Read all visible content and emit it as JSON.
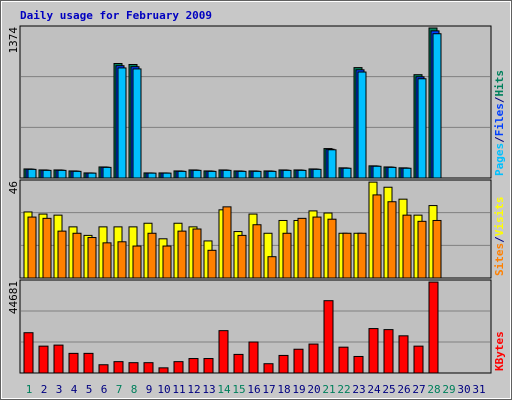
{
  "chart_data": [
    {
      "type": "bar",
      "title": "Daily usage for February 2009",
      "ylim": [
        0,
        1374
      ],
      "yticks": [
        1374
      ],
      "grid_divisions": 3,
      "legend_separator": "/",
      "series": [
        {
          "name": "Hits",
          "color": "#00805c",
          "values": [
            82,
            73,
            73,
            64,
            46,
            100,
            1035,
            1026,
            46,
            46,
            64,
            73,
            64,
            73,
            64,
            64,
            64,
            73,
            73,
            82,
            266,
            92,
            998,
            110,
            100,
            92,
            934,
            1356,
            null,
            null,
            null
          ]
        },
        {
          "name": "Files",
          "color": "#0040ff",
          "values": [
            80,
            71,
            71,
            62,
            45,
            98,
            1015,
            1006,
            45,
            45,
            62,
            71,
            62,
            71,
            62,
            62,
            62,
            71,
            71,
            80,
            260,
            90,
            978,
            108,
            98,
            90,
            915,
            1330,
            null,
            null,
            null
          ]
        },
        {
          "name": "Pages",
          "color": "#00c0ff",
          "values": [
            78,
            69,
            69,
            60,
            44,
            96,
            995,
            986,
            44,
            44,
            60,
            69,
            60,
            69,
            60,
            60,
            60,
            69,
            69,
            78,
            255,
            88,
            958,
            106,
            96,
            88,
            897,
            1304,
            null,
            null,
            null
          ]
        }
      ]
    },
    {
      "type": "bar",
      "ylim": [
        0,
        46
      ],
      "yticks": [
        46
      ],
      "grid_divisions": 3,
      "legend_separator": "/",
      "series": [
        {
          "name": "Visits",
          "color": "#ffff00",
          "values": [
            31,
            30,
            29.5,
            24,
            20,
            24,
            24,
            24,
            25.7,
            18.4,
            25.7,
            24,
            17.4,
            32,
            21.8,
            30,
            21,
            27,
            27,
            31.5,
            30.5,
            21,
            21,
            45,
            42.6,
            37,
            29.5,
            34,
            null,
            null,
            null
          ]
        },
        {
          "name": "Sites",
          "color": "#ff8000",
          "values": [
            28.6,
            28,
            22,
            21,
            19,
            16.5,
            17,
            15,
            21,
            15,
            22,
            23,
            13,
            33.4,
            20,
            25,
            10,
            21,
            28,
            28.6,
            27.6,
            21,
            21,
            39,
            35.8,
            29.5,
            26.6,
            27,
            null,
            null,
            null
          ]
        }
      ]
    },
    {
      "type": "bar",
      "ylim": [
        0,
        44681
      ],
      "yticks": [
        44681
      ],
      "grid_divisions": 3,
      "categories": [
        "1",
        "2",
        "3",
        "4",
        "5",
        "6",
        "7",
        "8",
        "9",
        "10",
        "11",
        "12",
        "13",
        "14",
        "15",
        "16",
        "17",
        "18",
        "19",
        "20",
        "21",
        "22",
        "23",
        "24",
        "25",
        "26",
        "27",
        "28",
        "29",
        "30",
        "31"
      ],
      "highlight_days": [
        "1",
        "7",
        "8",
        "14",
        "15",
        "21",
        "22",
        "28",
        "29"
      ],
      "highlight_color": "#00805c",
      "label_color": "#000080",
      "series": [
        {
          "name": "KBytes",
          "color": "#ff0000",
          "values": [
            19361,
            12908,
            13404,
            9433,
            9433,
            3972,
            5461,
            4965,
            4965,
            2482,
            5461,
            6950,
            6950,
            20354,
            8936,
            14894,
            4468,
            8440,
            11418,
            13900,
            34752,
            12411,
            7943,
            21347,
            20851,
            17872,
            12908,
            43688,
            null,
            null,
            null
          ]
        }
      ]
    }
  ]
}
